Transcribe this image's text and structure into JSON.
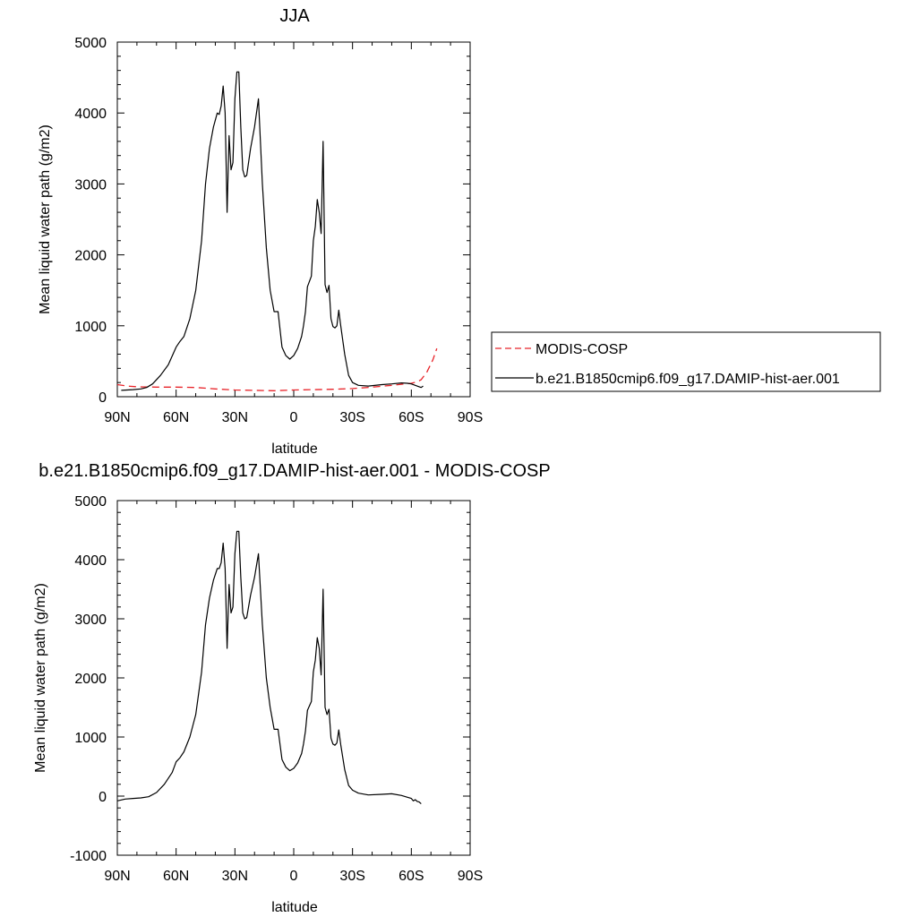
{
  "chart_data": [
    {
      "type": "line",
      "title": "JJA",
      "xlabel": "latitude",
      "ylabel": "Mean liquid water path (g/m2)",
      "xlim": [
        90,
        -90
      ],
      "ylim": [
        0,
        5000
      ],
      "x_ticks": [
        {
          "value": 90,
          "label": "90N"
        },
        {
          "value": 60,
          "label": "60N"
        },
        {
          "value": 30,
          "label": "30N"
        },
        {
          "value": 0,
          "label": "0"
        },
        {
          "value": -30,
          "label": "30S"
        },
        {
          "value": -60,
          "label": "60S"
        },
        {
          "value": -90,
          "label": "90S"
        }
      ],
      "y_ticks": [
        0,
        1000,
        2000,
        3000,
        4000,
        5000
      ],
      "legend": "right",
      "grid": false,
      "series": [
        {
          "name": "MODIS-COSP",
          "color": "#e8242a",
          "dash": "dashed",
          "points": [
            [
              90,
              170
            ],
            [
              85,
              150
            ],
            [
              80,
              140
            ],
            [
              70,
              135
            ],
            [
              60,
              135
            ],
            [
              50,
              130
            ],
            [
              40,
              110
            ],
            [
              30,
              95
            ],
            [
              20,
              90
            ],
            [
              10,
              85
            ],
            [
              0,
              95
            ],
            [
              -10,
              100
            ],
            [
              -20,
              105
            ],
            [
              -30,
              115
            ],
            [
              -40,
              135
            ],
            [
              -50,
              160
            ],
            [
              -55,
              175
            ],
            [
              -60,
              190
            ],
            [
              -63,
              210
            ],
            [
              -65,
              240
            ],
            [
              -68,
              350
            ],
            [
              -71,
              520
            ],
            [
              -73,
              680
            ]
          ]
        },
        {
          "name": "b.e21.B1850cmip6.f09_g17.DAMIP-hist-aer.001",
          "color": "#000000",
          "dash": "solid",
          "points": [
            [
              88,
              90
            ],
            [
              82,
              100
            ],
            [
              78,
              110
            ],
            [
              75,
              130
            ],
            [
              72,
              180
            ],
            [
              68,
              300
            ],
            [
              64,
              450
            ],
            [
              60,
              700
            ],
            [
              58,
              780
            ],
            [
              56,
              850
            ],
            [
              53,
              1100
            ],
            [
              50,
              1500
            ],
            [
              47,
              2200
            ],
            [
              45,
              3000
            ],
            [
              43,
              3500
            ],
            [
              41,
              3800
            ],
            [
              39,
              4000
            ],
            [
              38,
              3980
            ],
            [
              37,
              4100
            ],
            [
              36,
              4380
            ],
            [
              35,
              4000
            ],
            [
              34,
              2600
            ],
            [
              33,
              3680
            ],
            [
              32,
              3200
            ],
            [
              31,
              3300
            ],
            [
              30,
              4200
            ],
            [
              29,
              4580
            ],
            [
              28,
              4580
            ],
            [
              27,
              3800
            ],
            [
              26,
              3200
            ],
            [
              25,
              3100
            ],
            [
              24,
              3120
            ],
            [
              22,
              3500
            ],
            [
              20,
              3800
            ],
            [
              18,
              4200
            ],
            [
              16,
              3000
            ],
            [
              14,
              2100
            ],
            [
              12,
              1500
            ],
            [
              10,
              1200
            ],
            [
              8,
              1200
            ],
            [
              6,
              700
            ],
            [
              4,
              580
            ],
            [
              2,
              530
            ],
            [
              0,
              580
            ],
            [
              -2,
              680
            ],
            [
              -4,
              850
            ],
            [
              -5,
              1000
            ],
            [
              -6,
              1200
            ],
            [
              -7,
              1550
            ],
            [
              -9,
              1700
            ],
            [
              -10,
              2200
            ],
            [
              -11,
              2400
            ],
            [
              -12,
              2780
            ],
            [
              -13,
              2600
            ],
            [
              -14,
              2300
            ],
            [
              -15,
              3600
            ],
            [
              -16,
              1580
            ],
            [
              -17,
              1470
            ],
            [
              -18,
              1570
            ],
            [
              -19,
              1100
            ],
            [
              -20,
              990
            ],
            [
              -21,
              970
            ],
            [
              -22,
              1000
            ],
            [
              -23,
              1220
            ],
            [
              -24,
              1000
            ],
            [
              -26,
              600
            ],
            [
              -28,
              300
            ],
            [
              -30,
              200
            ],
            [
              -33,
              160
            ],
            [
              -38,
              150
            ],
            [
              -45,
              170
            ],
            [
              -50,
              180
            ],
            [
              -55,
              195
            ],
            [
              -58,
              190
            ],
            [
              -60,
              180
            ],
            [
              -62,
              160
            ],
            [
              -64,
              140
            ],
            [
              -65,
              130
            ],
            [
              -66,
              150
            ]
          ]
        }
      ]
    },
    {
      "type": "line",
      "title": "b.e21.B1850cmip6.f09_g17.DAMIP-hist-aer.001 - MODIS-COSP",
      "xlabel": "latitude",
      "ylabel": "Mean liquid water path (g/m2)",
      "xlim": [
        90,
        -90
      ],
      "ylim": [
        -1000,
        5000
      ],
      "x_ticks": [
        {
          "value": 90,
          "label": "90N"
        },
        {
          "value": 60,
          "label": "60N"
        },
        {
          "value": 30,
          "label": "30N"
        },
        {
          "value": 0,
          "label": "0"
        },
        {
          "value": -30,
          "label": "30S"
        },
        {
          "value": -60,
          "label": "60S"
        },
        {
          "value": -90,
          "label": "90S"
        }
      ],
      "y_ticks": [
        -1000,
        0,
        1000,
        2000,
        3000,
        4000,
        5000
      ],
      "grid": false,
      "series": [
        {
          "color": "#000000",
          "dash": "solid",
          "points": [
            [
              90,
              -80
            ],
            [
              86,
              -50
            ],
            [
              82,
              -40
            ],
            [
              78,
              -30
            ],
            [
              74,
              -10
            ],
            [
              70,
              60
            ],
            [
              66,
              200
            ],
            [
              62,
              400
            ],
            [
              60,
              580
            ],
            [
              58,
              650
            ],
            [
              56,
              750
            ],
            [
              53,
              1000
            ],
            [
              50,
              1380
            ],
            [
              47,
              2100
            ],
            [
              45,
              2900
            ],
            [
              43,
              3350
            ],
            [
              41,
              3650
            ],
            [
              39,
              3850
            ],
            [
              38,
              3850
            ],
            [
              37,
              3950
            ],
            [
              36,
              4280
            ],
            [
              35,
              3850
            ],
            [
              34,
              2500
            ],
            [
              33,
              3580
            ],
            [
              32,
              3100
            ],
            [
              31,
              3200
            ],
            [
              30,
              4100
            ],
            [
              29,
              4480
            ],
            [
              28,
              4480
            ],
            [
              27,
              3700
            ],
            [
              26,
              3100
            ],
            [
              25,
              3000
            ],
            [
              24,
              3020
            ],
            [
              22,
              3400
            ],
            [
              20,
              3700
            ],
            [
              18,
              4100
            ],
            [
              16,
              2900
            ],
            [
              14,
              2000
            ],
            [
              12,
              1500
            ],
            [
              10,
              1130
            ],
            [
              8,
              1130
            ],
            [
              6,
              620
            ],
            [
              4,
              490
            ],
            [
              2,
              430
            ],
            [
              0,
              470
            ],
            [
              -2,
              560
            ],
            [
              -4,
              720
            ],
            [
              -5,
              880
            ],
            [
              -6,
              1100
            ],
            [
              -7,
              1450
            ],
            [
              -9,
              1600
            ],
            [
              -10,
              2100
            ],
            [
              -11,
              2300
            ],
            [
              -12,
              2680
            ],
            [
              -13,
              2500
            ],
            [
              -14,
              2050
            ],
            [
              -15,
              3500
            ],
            [
              -16,
              1500
            ],
            [
              -17,
              1380
            ],
            [
              -18,
              1470
            ],
            [
              -19,
              980
            ],
            [
              -20,
              880
            ],
            [
              -21,
              860
            ],
            [
              -22,
              900
            ],
            [
              -23,
              1120
            ],
            [
              -24,
              870
            ],
            [
              -26,
              450
            ],
            [
              -28,
              180
            ],
            [
              -30,
              100
            ],
            [
              -33,
              50
            ],
            [
              -38,
              20
            ],
            [
              -45,
              30
            ],
            [
              -50,
              40
            ],
            [
              -55,
              10
            ],
            [
              -58,
              -20
            ],
            [
              -60,
              -40
            ],
            [
              -61,
              -80
            ],
            [
              -62,
              -60
            ],
            [
              -63,
              -90
            ],
            [
              -64,
              -100
            ],
            [
              -65,
              -130
            ]
          ]
        }
      ]
    }
  ]
}
